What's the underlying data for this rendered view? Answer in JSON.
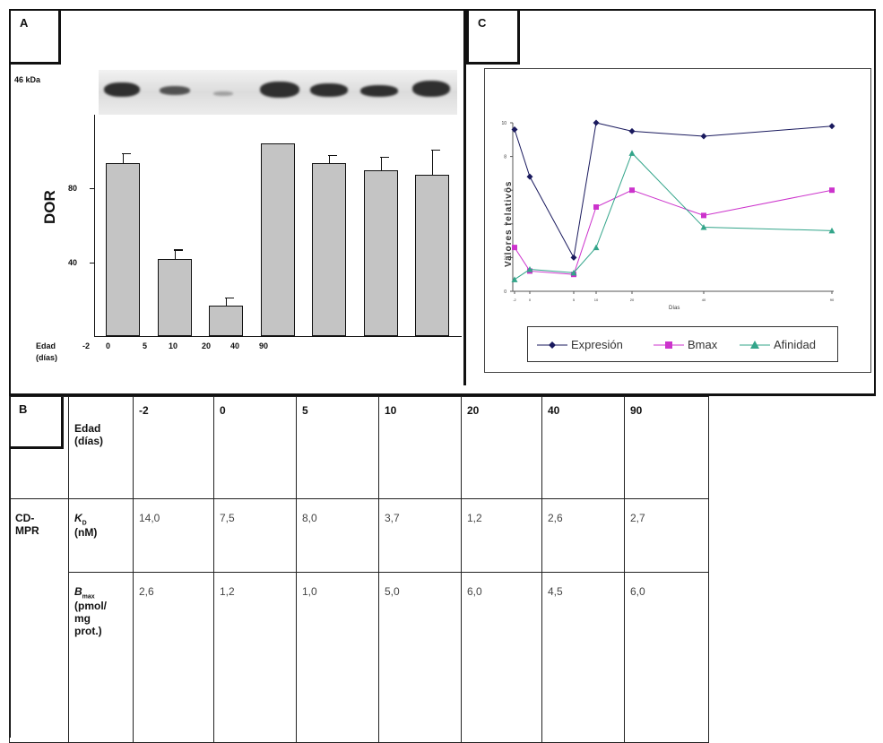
{
  "panels": {
    "a": "A",
    "b": "B",
    "c": "C"
  },
  "panel_a": {
    "kda_label": "46 kDa",
    "ylabel": "DOR",
    "yticks": [
      "80",
      "40"
    ],
    "x_label_line1": "Edad",
    "x_label_line2": "(días)",
    "xticks": [
      "-2",
      "0",
      "5",
      "10",
      "20",
      "40",
      "90"
    ]
  },
  "panel_c": {
    "ylabel": "Valores relativos",
    "xlabel": "Días",
    "yticks": [
      "0",
      "2",
      "4",
      "6",
      "8",
      "10"
    ],
    "legend": [
      "Expresión",
      "Bmax",
      "Afinidad"
    ]
  },
  "table": {
    "age_label_1": "Edad",
    "age_label_2": "(días)",
    "ages": [
      "-2",
      "0",
      "5",
      "10",
      "20",
      "40",
      "90"
    ],
    "group_line1": "CD-",
    "group_line2": "MPR",
    "kd_label": "K",
    "kd_sub": "D",
    "kd_unit": "(nM)",
    "kd_values": [
      "14,0",
      "7,5",
      "8,0",
      "3,7",
      "1,2",
      "2,6",
      "2,7"
    ],
    "bmax_label": "B",
    "bmax_sub": "max",
    "bmax_unit_1": "(pmol/",
    "bmax_unit_2": "mg",
    "bmax_unit_3": "prot.)",
    "bmax_values": [
      "2,6",
      "1,2",
      "1,0",
      "5,0",
      "6,0",
      "4,5",
      "6,0"
    ]
  },
  "chart_data": [
    {
      "type": "bar",
      "categories": [
        "-2",
        "0",
        "5",
        "10",
        "20",
        "40",
        "90"
      ],
      "values": [
        90,
        40,
        16,
        100,
        90,
        86,
        84
      ],
      "errors": [
        5,
        5,
        4,
        0,
        4,
        7,
        13
      ],
      "ylabel": "DOR",
      "ylim": [
        0,
        115
      ],
      "colors": {
        "bar": "#c4c4c4"
      }
    },
    {
      "type": "line",
      "x": [
        -2,
        0,
        5,
        10,
        20,
        40,
        90
      ],
      "ylim": [
        0,
        10
      ],
      "series": [
        {
          "name": "Expresión",
          "values": [
            9.6,
            6.8,
            2.0,
            10.0,
            9.5,
            9.2,
            9.8
          ],
          "color": "#1a1a5e"
        },
        {
          "name": "Bmax",
          "values": [
            2.6,
            1.2,
            1.0,
            5.0,
            6.0,
            4.5,
            6.0
          ],
          "color": "#cc33cc"
        },
        {
          "name": "Afinidad",
          "values": [
            0.7,
            1.3,
            1.1,
            2.6,
            8.2,
            3.8,
            3.6
          ],
          "color": "#33a58a"
        }
      ],
      "ylabel": "Valores relativos",
      "xlabel": "Días"
    }
  ]
}
